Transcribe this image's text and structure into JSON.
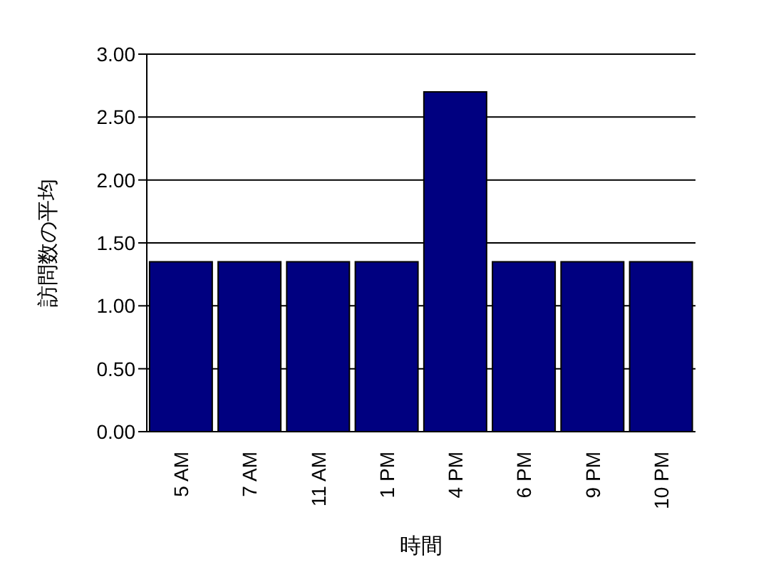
{
  "chart_data": {
    "type": "bar",
    "xlabel": "時間",
    "ylabel": "訪問数の平均",
    "categories": [
      "5 AM",
      "7 AM",
      "11 AM",
      "1 PM",
      "4 PM",
      "6 PM",
      "9 PM",
      "10 PM"
    ],
    "values": [
      1.35,
      1.35,
      1.35,
      1.35,
      2.7,
      1.35,
      1.35,
      1.35
    ],
    "color": "#000080",
    "ylim": [
      0,
      3
    ],
    "yticks": [
      {
        "value": 0,
        "label": "0.00"
      },
      {
        "value": 0.5,
        "label": "0.50"
      },
      {
        "value": 1,
        "label": "1.00"
      },
      {
        "value": 1.5,
        "label": "1.50"
      },
      {
        "value": 2,
        "label": "2.00"
      },
      {
        "value": 2.5,
        "label": "2.50"
      },
      {
        "value": 3,
        "label": "3.00"
      }
    ],
    "grid": "y",
    "legend": false
  }
}
